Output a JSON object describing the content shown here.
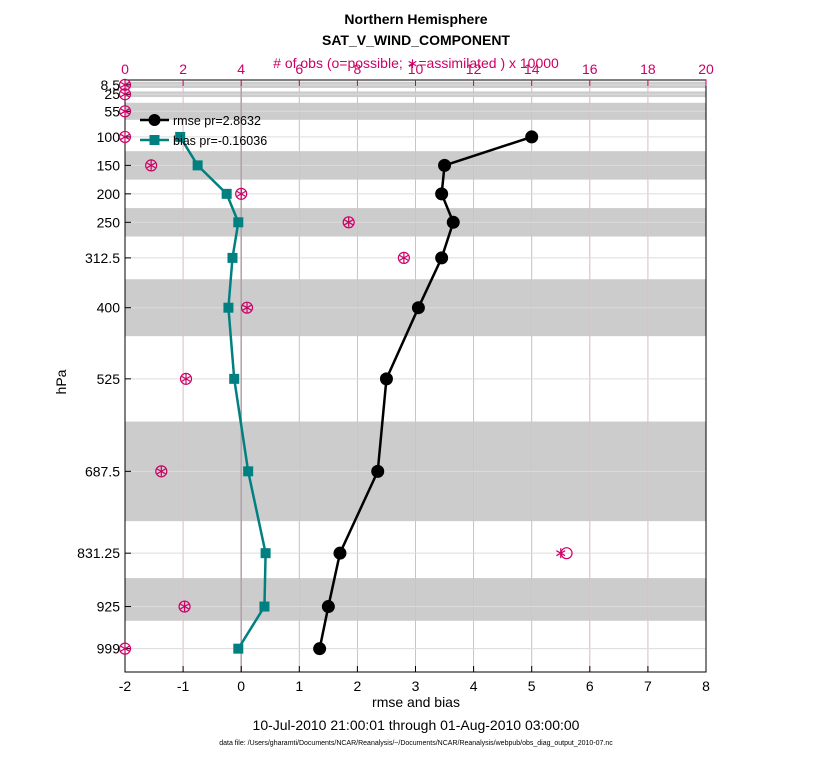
{
  "chart_data": {
    "type": "line",
    "title": "Northern Hemisphere",
    "subtitle": "SAT_V_WIND_COMPONENT",
    "xlabel": "rmse and bias",
    "ylabel": "hPa",
    "top_xlabel": "# of obs (o=possible; ∗=assimilated ) x 10000",
    "date_range": "10-Jul-2010 21:00:01 through 01-Aug-2010 03:00:00",
    "footer": "data file: /Users/gharamti/Documents/NCAR/Reanalysis/~/Documents/NCAR/Reanalysis/webpub/obs_diag_output_2010-07.nc",
    "xlim": [
      -2,
      8
    ],
    "xticks": [
      "-2",
      "-1",
      "0",
      "1",
      "2",
      "3",
      "4",
      "5",
      "6",
      "7",
      "8"
    ],
    "top_xlim": [
      0,
      20
    ],
    "top_xticks": [
      "0",
      "2",
      "4",
      "6",
      "8",
      "10",
      "12",
      "14",
      "16",
      "18",
      "20"
    ],
    "ylim": [
      0,
      1040
    ],
    "y_reversed": true,
    "levels": [
      8.5,
      25,
      55,
      100,
      150,
      200,
      250,
      312.5,
      400,
      525,
      687.5,
      831.25,
      925,
      999
    ],
    "level_labels": [
      "8.5",
      "25",
      "55",
      "100",
      "150",
      "200",
      "250",
      "312.5",
      "400",
      "525",
      "687.5",
      "831.25",
      "925",
      "999"
    ],
    "level_bands": [
      [
        3,
        14
      ],
      [
        20,
        30
      ],
      [
        40,
        70
      ],
      [
        125,
        175
      ],
      [
        225,
        275
      ],
      [
        350,
        450
      ],
      [
        600,
        775
      ],
      [
        875,
        950
      ]
    ],
    "grid": true,
    "legend_position": "top-left",
    "series": [
      {
        "name": "rmse pr=2.8632",
        "color": "#000000",
        "levels": [
          100,
          150,
          200,
          250,
          312.5,
          400,
          525,
          687.5,
          831.25,
          925,
          999
        ],
        "values": [
          5.0,
          3.5,
          3.45,
          3.65,
          3.45,
          3.05,
          2.5,
          2.35,
          1.7,
          1.5,
          1.35
        ]
      },
      {
        "name": "bias pr=-0.16036",
        "color": "#008080",
        "levels": [
          100,
          150,
          200,
          250,
          312.5,
          400,
          525,
          687.5,
          831.25,
          925,
          999
        ],
        "values": [
          -1.05,
          -0.75,
          -0.25,
          -0.05,
          -0.15,
          -0.22,
          -0.12,
          0.12,
          0.42,
          0.4,
          -0.05
        ]
      }
    ],
    "obs_counts": {
      "color": "#cc0066",
      "levels": [
        8.5,
        25,
        55,
        100,
        150,
        200,
        250,
        312.5,
        400,
        525,
        687.5,
        831.25,
        925,
        999
      ],
      "possible": [
        0,
        0,
        0,
        0,
        0.9,
        4.0,
        7.7,
        9.6,
        4.2,
        2.1,
        1.25,
        15.2,
        2.05,
        0
      ],
      "assimilated": [
        0,
        0,
        0,
        0,
        0.9,
        4.0,
        7.7,
        9.6,
        4.2,
        2.1,
        1.25,
        15.0,
        2.05,
        0
      ]
    }
  }
}
